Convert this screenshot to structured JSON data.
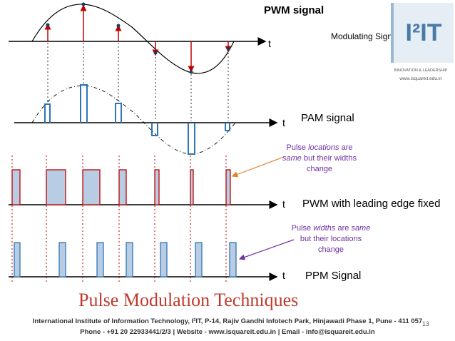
{
  "header": {
    "top_title": "PWM signal",
    "modulating_label": "Modulating Signal"
  },
  "axes": {
    "t_label": "t"
  },
  "signals": {
    "pam_label": "PAM signal",
    "pwm_label": "PWM with leading edge fixed",
    "ppm_label": "PPM Signal"
  },
  "notes": {
    "pwm_note": [
      "Pulse ",
      "locations",
      " are ",
      "same",
      " but their widths change"
    ],
    "ppm_note": [
      "Pulse ",
      "widths",
      " are ",
      "same",
      " but their locations change"
    ]
  },
  "logo": {
    "mark": "I²IT",
    "tagline": "INNOVATION & LEADERSHIP",
    "url": "www.isquareit.edu.in"
  },
  "slide": {
    "title": "Pulse Modulation Techniques",
    "footer_line1": "International Institute of Information Technology, I²IT, P-14, Rajiv Gandhi Infotech Park, Hinjawadi Phase 1, Pune - 411 057",
    "footer_line2": "Phone - +91 20 22933441/2/3 | Website - www.isquareit.edu.in | Email - info@isquareit.edu.in",
    "page_number": "13"
  },
  "colors": {
    "pulse_fill": "#b8cce4",
    "pulse_stroke": "#2e75b6",
    "pwm_fill": "#b8cce4",
    "pwm_stroke": "#c00000",
    "sample_arrow": "#c00000",
    "title": "#c0392b",
    "note_text": "#7030a0",
    "note_arrow_pwm": "#e67e22",
    "note_arrow_ppm": "#7030a0"
  }
}
